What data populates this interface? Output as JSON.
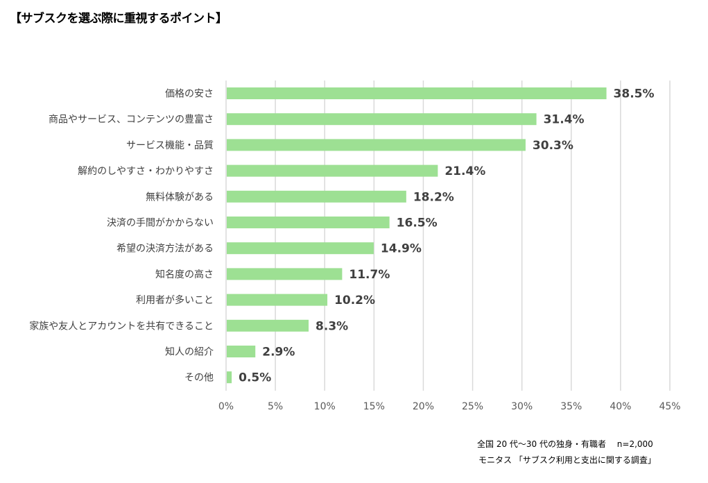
{
  "chart_data": {
    "type": "bar",
    "orientation": "horizontal",
    "title": "【サブスクを選ぶ際に重視するポイント】",
    "categories": [
      "価格の安さ",
      "商品やサービス、コンテンツの豊富さ",
      "サービス機能・品質",
      "解約のしやすさ・わかりやすさ",
      "無料体験がある",
      "決済の手間がかからない",
      "希望の決済方法がある",
      "知名度の高さ",
      "利用者が多いこと",
      "家族や友人とアカウントを共有できること",
      "知人の紹介",
      "その他"
    ],
    "values": [
      38.5,
      31.4,
      30.3,
      21.4,
      18.2,
      16.5,
      14.9,
      11.7,
      10.2,
      8.3,
      2.9,
      0.5
    ],
    "value_labels": [
      "38.5%",
      "31.4%",
      "30.3%",
      "21.4%",
      "18.2%",
      "16.5%",
      "14.9%",
      "11.7%",
      "10.2%",
      "8.3%",
      "2.9%",
      "0.5%"
    ],
    "xlabel": "",
    "ylabel": "",
    "xlim": [
      0,
      45
    ],
    "xticks": [
      0,
      5,
      10,
      15,
      20,
      25,
      30,
      35,
      40,
      45
    ],
    "xtick_labels": [
      "0%",
      "5%",
      "10%",
      "15%",
      "20%",
      "25%",
      "30%",
      "35%",
      "40%",
      "45%"
    ],
    "grid": "vertical",
    "bar_color": "#9de093",
    "legend": "none"
  },
  "notes": {
    "sample": "全国 20 代～30 代の独身・有職者　 n=2,000",
    "source": "モニタス 「サブスク利用と支出に関する調査」"
  }
}
